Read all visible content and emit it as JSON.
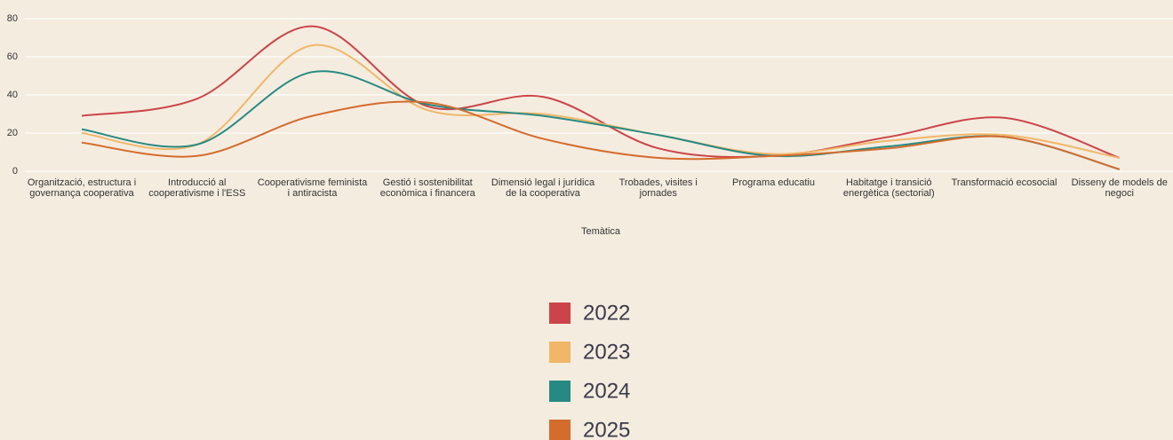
{
  "chart_data": {
    "type": "line",
    "x_label": "Temàtica",
    "categories": [
      "Organització, estructura i governança cooperativa",
      "Introducció al cooperativisme i l'ESS",
      "Cooperativisme feminista i antiracista",
      "Gestió i sostenibilitat econòmica i financera",
      "Dimensió legal i jurídica de la cooperativa",
      "Trobades, visites i jornades",
      "Programa educatiu",
      "Habitatge i transició energètica (sectorial)",
      "Transformació ecosocial",
      "Disseny de models de negoci"
    ],
    "series": [
      {
        "name": "2022",
        "color": "#cc4449",
        "values": [
          29,
          38,
          76,
          34,
          39,
          12,
          8,
          18,
          28,
          7
        ]
      },
      {
        "name": "2023",
        "color": "#f0b768",
        "values": [
          20,
          14,
          66,
          32,
          30,
          19,
          9,
          16,
          19,
          7
        ]
      },
      {
        "name": "2024",
        "color": "#278a82",
        "values": [
          22,
          14,
          52,
          35,
          29,
          19,
          8,
          13,
          18,
          1
        ]
      },
      {
        "name": "2025",
        "color": "#d46c2e",
        "values": [
          15,
          8,
          29,
          36,
          17,
          7,
          8,
          12,
          18,
          1
        ]
      }
    ],
    "ylim": [
      0,
      80
    ],
    "yticks": [
      0,
      20,
      40,
      60,
      80
    ],
    "grid": true,
    "smooth": true,
    "legend": "bottom"
  }
}
